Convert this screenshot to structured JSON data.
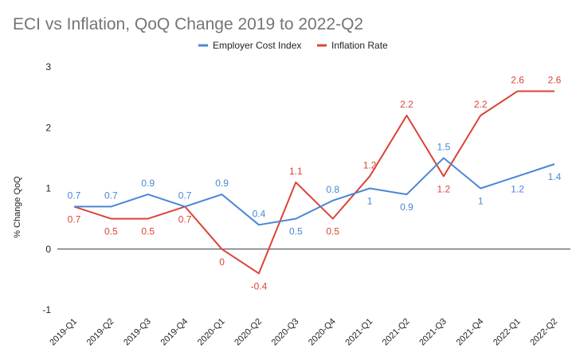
{
  "chart_data": {
    "type": "line",
    "title": "ECI vs Inflation, QoQ Change 2019 to 2022-Q2",
    "xlabel": "",
    "ylabel": "% Change QoQ",
    "categories": [
      "2019-Q1",
      "2019-Q2",
      "2019-Q3",
      "2019-Q4",
      "2020-Q1",
      "2020-Q2",
      "2020-Q3",
      "2020-Q4",
      "2021-Q1",
      "2021-Q2",
      "2021-Q3",
      "2021-Q4",
      "2022-Q1",
      "2022-Q2"
    ],
    "ylim": [
      -1,
      3
    ],
    "yticks": [
      "-1",
      "0",
      "1",
      "2",
      "3"
    ],
    "grid": false,
    "legend_position": "top",
    "series": [
      {
        "name": "Employer Cost Index",
        "color": "#4a86d8",
        "values": [
          0.7,
          0.7,
          0.9,
          0.7,
          0.9,
          0.4,
          0.5,
          0.8,
          1,
          0.9,
          1.5,
          1,
          1.2,
          1.4
        ],
        "labels": [
          "0.7",
          "0.7",
          "0.9",
          "0.7",
          "0.9",
          "0.4",
          "0.5",
          "0.8",
          "1",
          "0.9",
          "1.5",
          "1",
          "1.2",
          "1.4"
        ]
      },
      {
        "name": "Inflation Rate",
        "color": "#db4437",
        "values": [
          0.7,
          0.5,
          0.5,
          0.7,
          0,
          -0.4,
          1.1,
          0.5,
          1.2,
          2.2,
          1.2,
          2.2,
          2.6,
          2.6
        ],
        "labels": [
          "0.7",
          "0.5",
          "0.5",
          "0.7",
          "0",
          "-0.4",
          "1.1",
          "0.5",
          "1.2",
          "2.2",
          "1.2",
          "2.2",
          "2.6",
          "2.6"
        ]
      }
    ]
  }
}
